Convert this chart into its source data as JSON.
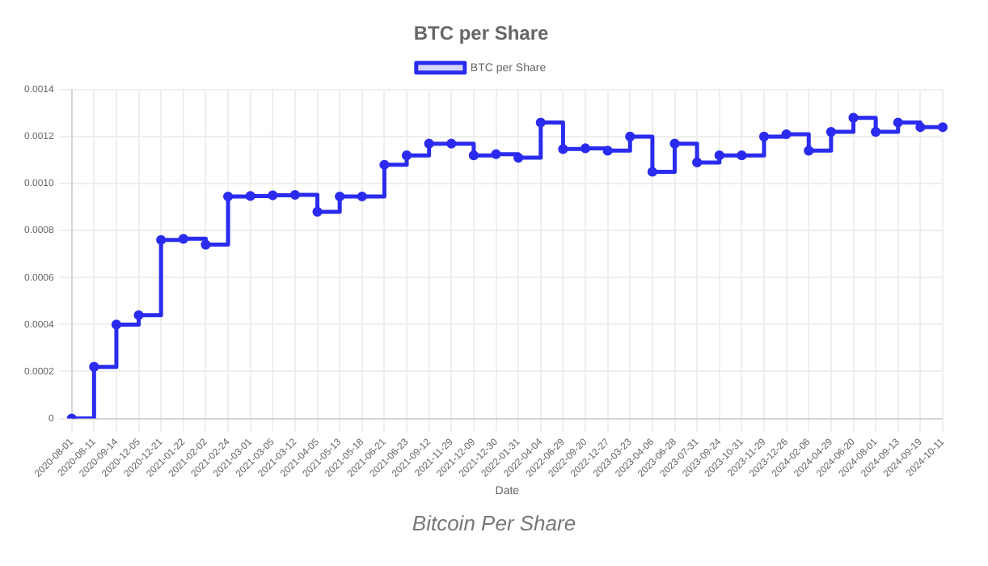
{
  "chart_data": {
    "type": "step",
    "title": "BTC per Share",
    "xlabel": "Date",
    "categories": [
      "2020-08-01",
      "2020-08-11",
      "2020-09-14",
      "2020-12-05",
      "2020-12-21",
      "2021-01-22",
      "2021-02-02",
      "2021-02-24",
      "2021-03-01",
      "2021-03-05",
      "2021-03-12",
      "2021-04-05",
      "2021-05-13",
      "2021-05-18",
      "2021-06-21",
      "2021-06-23",
      "2021-09-12",
      "2021-11-29",
      "2021-12-09",
      "2021-12-30",
      "2022-01-31",
      "2022-04-04",
      "2022-06-29",
      "2022-09-20",
      "2022-12-27",
      "2023-03-23",
      "2023-04-06",
      "2023-06-28",
      "2023-07-31",
      "2023-09-24",
      "2023-10-31",
      "2023-11-29",
      "2023-12-26",
      "2024-02-06",
      "2024-04-29",
      "2024-06-20",
      "2024-08-01",
      "2024-09-13",
      "2024-09-19",
      "2024-10-11"
    ],
    "series": [
      {
        "name": "BTC per Share",
        "color": "#2b2bf0",
        "values": [
          0,
          0.00022,
          0.0004,
          0.00044,
          0.00076,
          0.000765,
          0.00074,
          0.000945,
          0.000947,
          0.00095,
          0.000952,
          0.00088,
          0.000945,
          0.000945,
          0.00108,
          0.00112,
          0.00117,
          0.00117,
          0.00112,
          0.001125,
          0.00111,
          0.00126,
          0.001147,
          0.00115,
          0.00114,
          0.0012,
          0.00105,
          0.00117,
          0.00109,
          0.00112,
          0.00112,
          0.0012,
          0.00121,
          0.00114,
          0.00122,
          0.00128,
          0.00122,
          0.00126,
          0.00124,
          0.00124
        ]
      }
    ],
    "ylim": [
      0,
      0.0014
    ],
    "yticks": [
      0,
      0.0002,
      0.0004,
      0.0006,
      0.0008,
      {
        "value": 0.001,
        "label": "0.0010"
      },
      0.0012,
      0.0014
    ],
    "grid": true,
    "legend": "top",
    "marker": "circle",
    "line_style": "solid",
    "annotations": [
      "Bitcoin Per Share"
    ]
  }
}
